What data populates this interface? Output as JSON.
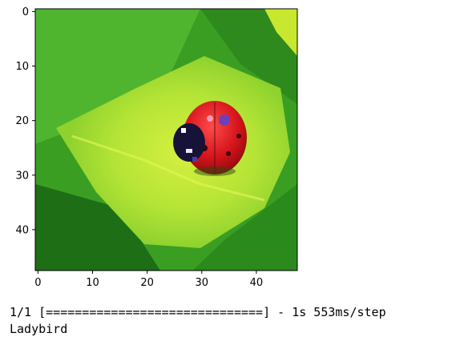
{
  "figure": {
    "x_ticks": [
      "0",
      "10",
      "20",
      "30",
      "40"
    ],
    "y_ticks": [
      "0",
      "10",
      "20",
      "30",
      "40"
    ],
    "image_subject": "ladybird on leaf",
    "colors": {
      "leaf_dark": "#2c8c1e",
      "leaf_mid": "#4cb82a",
      "leaf_light": "#b7e83a",
      "ladybird_red": "#d4141b",
      "ladybird_head": "#1a1640"
    }
  },
  "output": {
    "progress": "1/1 [==============================] - 1s 553ms/step",
    "prediction": "Ladybird"
  }
}
